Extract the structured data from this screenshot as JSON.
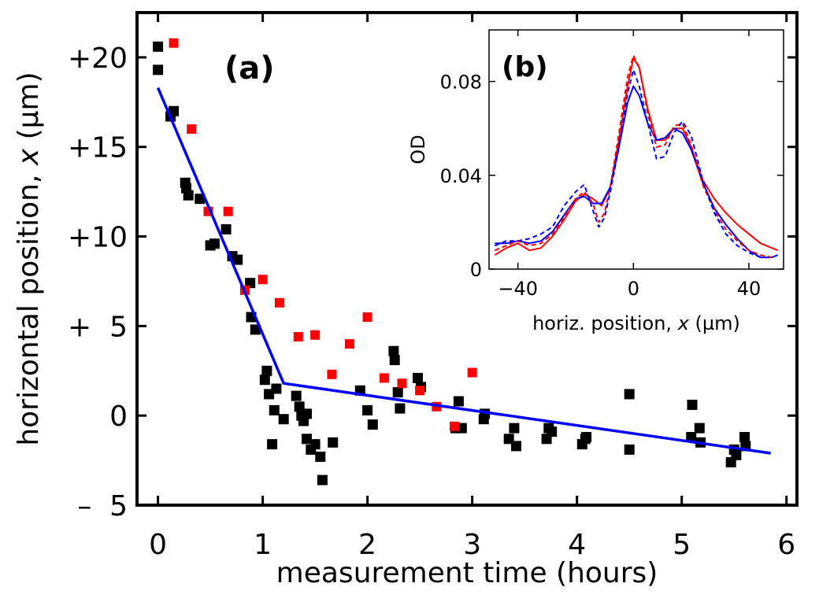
{
  "chart_data": [
    {
      "panel": "(a)",
      "type": "scatter",
      "xlabel": "measurement  time (hours)",
      "ylabel_prefix": "horizontal  position, ",
      "ylabel_var": "x",
      "ylabel_suffix": " (µm)",
      "xlim": [
        -0.2,
        6.1
      ],
      "ylim": [
        -5,
        22.5
      ],
      "xticks": [
        0,
        1,
        2,
        3,
        4,
        5,
        6
      ],
      "xtick_labels": [
        "0",
        "1",
        "2",
        "3",
        "4",
        "5",
        "6"
      ],
      "yticks": [
        20,
        15,
        10,
        5,
        0,
        -5
      ],
      "ytick_labels": [
        "+20",
        "+15",
        "+10",
        "+  5",
        "0",
        "–  5"
      ],
      "colors": {
        "black": "#000000",
        "red": "#ff0000",
        "fit": "#0000ff"
      },
      "series": [
        {
          "name": "black",
          "marker": "square",
          "points": [
            [
              0.0,
              20.6
            ],
            [
              0.0,
              19.3
            ],
            [
              0.12,
              16.7
            ],
            [
              0.15,
              17.0
            ],
            [
              0.26,
              13.0
            ],
            [
              0.27,
              12.7
            ],
            [
              0.29,
              12.3
            ],
            [
              0.4,
              12.1
            ],
            [
              0.5,
              9.5
            ],
            [
              0.54,
              9.6
            ],
            [
              0.65,
              10.4
            ],
            [
              0.71,
              8.9
            ],
            [
              0.76,
              8.7
            ],
            [
              0.88,
              7.4
            ],
            [
              0.89,
              5.5
            ],
            [
              0.93,
              4.8
            ],
            [
              1.02,
              2.0
            ],
            [
              1.04,
              2.5
            ],
            [
              1.06,
              1.2
            ],
            [
              1.09,
              -1.6
            ],
            [
              1.11,
              0.3
            ],
            [
              1.13,
              1.5
            ],
            [
              1.2,
              -0.2
            ],
            [
              1.32,
              1.1
            ],
            [
              1.35,
              0.5
            ],
            [
              1.37,
              0.0
            ],
            [
              1.39,
              -0.3
            ],
            [
              1.42,
              0.1
            ],
            [
              1.42,
              -1.3
            ],
            [
              1.46,
              -1.9
            ],
            [
              1.5,
              -1.6
            ],
            [
              1.55,
              -2.3
            ],
            [
              1.57,
              -3.6
            ],
            [
              1.67,
              -1.5
            ],
            [
              1.93,
              1.4
            ],
            [
              2.0,
              0.3
            ],
            [
              2.05,
              -0.5
            ],
            [
              2.25,
              3.6
            ],
            [
              2.26,
              3.1
            ],
            [
              2.29,
              1.3
            ],
            [
              2.31,
              0.4
            ],
            [
              2.48,
              2.1
            ],
            [
              2.51,
              1.6
            ],
            [
              2.84,
              -0.7
            ],
            [
              2.87,
              0.8
            ],
            [
              2.9,
              -0.7
            ],
            [
              3.12,
              0.1
            ],
            [
              3.11,
              -0.2
            ],
            [
              3.35,
              -1.3
            ],
            [
              3.4,
              -0.7
            ],
            [
              3.42,
              -1.7
            ],
            [
              3.73,
              -0.7
            ],
            [
              3.71,
              -1.3
            ],
            [
              3.76,
              -0.9
            ],
            [
              4.05,
              -1.6
            ],
            [
              4.08,
              -1.3
            ],
            [
              4.09,
              -1.2
            ],
            [
              4.5,
              1.2
            ],
            [
              4.5,
              -1.9
            ],
            [
              5.1,
              0.6
            ],
            [
              5.09,
              -1.2
            ],
            [
              5.18,
              -1.5
            ],
            [
              5.17,
              -0.7
            ],
            [
              5.47,
              -2.6
            ],
            [
              5.5,
              -1.9
            ],
            [
              5.52,
              -2.2
            ],
            [
              5.6,
              -1.2
            ],
            [
              5.61,
              -1.7
            ]
          ]
        },
        {
          "name": "red",
          "marker": "square",
          "points": [
            [
              0.15,
              20.8
            ],
            [
              0.32,
              16.0
            ],
            [
              0.48,
              11.4
            ],
            [
              0.67,
              11.4
            ],
            [
              0.83,
              7.0
            ],
            [
              1.0,
              7.6
            ],
            [
              1.16,
              6.3
            ],
            [
              1.34,
              4.4
            ],
            [
              1.5,
              4.5
            ],
            [
              1.66,
              2.3
            ],
            [
              1.83,
              4.0
            ],
            [
              2.0,
              5.5
            ],
            [
              2.16,
              2.1
            ],
            [
              2.33,
              1.8
            ],
            [
              2.5,
              1.4
            ],
            [
              2.66,
              0.5
            ],
            [
              2.83,
              -0.6
            ],
            [
              3.0,
              2.4
            ]
          ]
        },
        {
          "name": "fit",
          "type": "line",
          "points": [
            [
              0.0,
              18.3
            ],
            [
              1.2,
              1.8
            ],
            [
              5.85,
              -2.1
            ]
          ]
        }
      ]
    },
    {
      "panel": "(b)",
      "type": "line",
      "xlabel_prefix": "horiz. position, ",
      "xlabel_var": "x",
      "xlabel_suffix": " (µm)",
      "ylabel": "OD",
      "xlim": [
        -50,
        52
      ],
      "ylim": [
        0,
        0.102
      ],
      "xticks": [
        -40,
        0,
        40
      ],
      "xtick_labels": [
        "−40",
        "0",
        "40"
      ],
      "yticks": [
        0,
        0.04,
        0.08
      ],
      "ytick_labels": [
        "0",
        "0.04",
        "0.08"
      ],
      "colors": {
        "red": "#ff0000",
        "blue": "#0000ff"
      },
      "series": [
        {
          "name": "red-solid",
          "style": "solid",
          "x": [
            -48,
            -44,
            -40,
            -36,
            -32,
            -28,
            -24,
            -20,
            -17,
            -14,
            -11,
            -8,
            -5,
            -2,
            0,
            2,
            5,
            8,
            11,
            14,
            17,
            20,
            24,
            28,
            32,
            36,
            40,
            44,
            48,
            50
          ],
          "y": [
            0.006,
            0.009,
            0.011,
            0.008,
            0.009,
            0.014,
            0.021,
            0.029,
            0.032,
            0.03,
            0.027,
            0.035,
            0.055,
            0.078,
            0.09,
            0.086,
            0.068,
            0.055,
            0.055,
            0.06,
            0.06,
            0.052,
            0.038,
            0.03,
            0.024,
            0.019,
            0.015,
            0.011,
            0.009,
            0.008
          ]
        },
        {
          "name": "blue-solid",
          "style": "solid",
          "x": [
            -48,
            -44,
            -40,
            -36,
            -32,
            -28,
            -24,
            -20,
            -17,
            -14,
            -11,
            -8,
            -5,
            -2,
            0,
            2,
            5,
            8,
            11,
            14,
            17,
            20,
            24,
            28,
            32,
            36,
            40,
            44,
            48,
            50
          ],
          "y": [
            0.011,
            0.011,
            0.012,
            0.011,
            0.012,
            0.016,
            0.023,
            0.03,
            0.031,
            0.028,
            0.028,
            0.035,
            0.052,
            0.071,
            0.078,
            0.074,
            0.062,
            0.055,
            0.056,
            0.06,
            0.058,
            0.051,
            0.037,
            0.026,
            0.019,
            0.013,
            0.008,
            0.005,
            0.005,
            0.006
          ]
        },
        {
          "name": "red-dashed",
          "style": "dashed",
          "x": [
            -48,
            -44,
            -40,
            -36,
            -32,
            -28,
            -24,
            -20,
            -17,
            -14,
            -12,
            -10,
            -8,
            -5,
            -2,
            0,
            2,
            5,
            8,
            11,
            14,
            17,
            20,
            24,
            28,
            32,
            36,
            40,
            44,
            48
          ],
          "y": [
            0.008,
            0.01,
            0.012,
            0.01,
            0.011,
            0.015,
            0.022,
            0.03,
            0.033,
            0.028,
            0.02,
            0.024,
            0.035,
            0.058,
            0.082,
            0.091,
            0.086,
            0.066,
            0.052,
            0.053,
            0.061,
            0.062,
            0.053,
            0.036,
            0.025,
            0.017,
            0.012,
            0.008,
            0.006,
            0.005
          ]
        },
        {
          "name": "blue-dashed",
          "style": "dashed",
          "x": [
            -48,
            -44,
            -40,
            -36,
            -32,
            -28,
            -24,
            -20,
            -17,
            -14,
            -12,
            -10,
            -8,
            -5,
            -2,
            0,
            2,
            5,
            8,
            11,
            14,
            17,
            20,
            24,
            28,
            32,
            36,
            40,
            44,
            48
          ],
          "y": [
            0.01,
            0.012,
            0.012,
            0.013,
            0.015,
            0.018,
            0.027,
            0.033,
            0.036,
            0.025,
            0.018,
            0.022,
            0.033,
            0.052,
            0.075,
            0.085,
            0.078,
            0.062,
            0.047,
            0.048,
            0.058,
            0.063,
            0.057,
            0.038,
            0.024,
            0.015,
            0.01,
            0.007,
            0.005,
            0.005
          ]
        }
      ]
    }
  ]
}
